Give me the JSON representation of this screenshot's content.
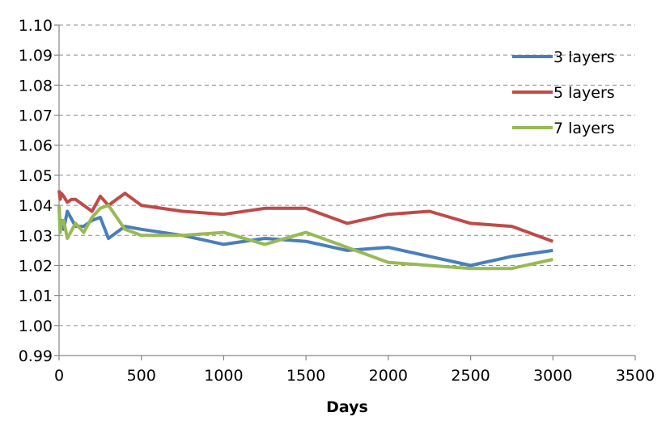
{
  "chart_data": {
    "type": "line",
    "xlabel": "Days",
    "ylabel": "",
    "xlim": [
      0,
      3500
    ],
    "ylim": [
      0.99,
      1.1
    ],
    "x_ticks": [
      "0",
      "500",
      "1000",
      "1500",
      "2000",
      "2500",
      "3000",
      "3500"
    ],
    "y_ticks": [
      "0.99",
      "1.00",
      "1.01",
      "1.02",
      "1.03",
      "1.04",
      "1.05",
      "1.06",
      "1.07",
      "1.08",
      "1.09",
      "1.10"
    ],
    "grid": "horizontal dashed",
    "legend_position": "top-right",
    "series": [
      {
        "name": "3 layers",
        "color": "#4a7ebb",
        "points": [
          [
            0,
            1.04
          ],
          [
            7,
            1.031
          ],
          [
            14,
            1.035
          ],
          [
            28,
            1.032
          ],
          [
            50,
            1.038
          ],
          [
            100,
            1.033
          ],
          [
            150,
            1.033
          ],
          [
            200,
            1.035
          ],
          [
            250,
            1.036
          ],
          [
            300,
            1.029
          ],
          [
            400,
            1.033
          ],
          [
            500,
            1.032
          ],
          [
            750,
            1.03
          ],
          [
            1000,
            1.027
          ],
          [
            1250,
            1.029
          ],
          [
            1500,
            1.028
          ],
          [
            1750,
            1.025
          ],
          [
            2000,
            1.026
          ],
          [
            2250,
            1.023
          ],
          [
            2500,
            1.02
          ],
          [
            2750,
            1.023
          ],
          [
            3000,
            1.025
          ]
        ]
      },
      {
        "name": "5 layers",
        "color": "#be4b48",
        "points": [
          [
            0,
            1.045
          ],
          [
            7,
            1.042
          ],
          [
            14,
            1.044
          ],
          [
            28,
            1.043
          ],
          [
            50,
            1.041
          ],
          [
            75,
            1.042
          ],
          [
            100,
            1.042
          ],
          [
            150,
            1.04
          ],
          [
            200,
            1.038
          ],
          [
            250,
            1.043
          ],
          [
            300,
            1.04
          ],
          [
            400,
            1.044
          ],
          [
            500,
            1.04
          ],
          [
            750,
            1.038
          ],
          [
            1000,
            1.037
          ],
          [
            1250,
            1.039
          ],
          [
            1500,
            1.039
          ],
          [
            1750,
            1.034
          ],
          [
            2000,
            1.037
          ],
          [
            2250,
            1.038
          ],
          [
            2500,
            1.034
          ],
          [
            2750,
            1.033
          ],
          [
            3000,
            1.028
          ]
        ]
      },
      {
        "name": "7 layers",
        "color": "#98b954",
        "points": [
          [
            0,
            1.04
          ],
          [
            7,
            1.031
          ],
          [
            14,
            1.034
          ],
          [
            28,
            1.035
          ],
          [
            50,
            1.029
          ],
          [
            100,
            1.034
          ],
          [
            150,
            1.031
          ],
          [
            200,
            1.036
          ],
          [
            250,
            1.039
          ],
          [
            300,
            1.04
          ],
          [
            400,
            1.032
          ],
          [
            500,
            1.03
          ],
          [
            750,
            1.03
          ],
          [
            1000,
            1.031
          ],
          [
            1250,
            1.027
          ],
          [
            1500,
            1.031
          ],
          [
            1750,
            1.026
          ],
          [
            2000,
            1.021
          ],
          [
            2250,
            1.02
          ],
          [
            2500,
            1.019
          ],
          [
            2750,
            1.019
          ],
          [
            3000,
            1.022
          ]
        ]
      }
    ]
  }
}
